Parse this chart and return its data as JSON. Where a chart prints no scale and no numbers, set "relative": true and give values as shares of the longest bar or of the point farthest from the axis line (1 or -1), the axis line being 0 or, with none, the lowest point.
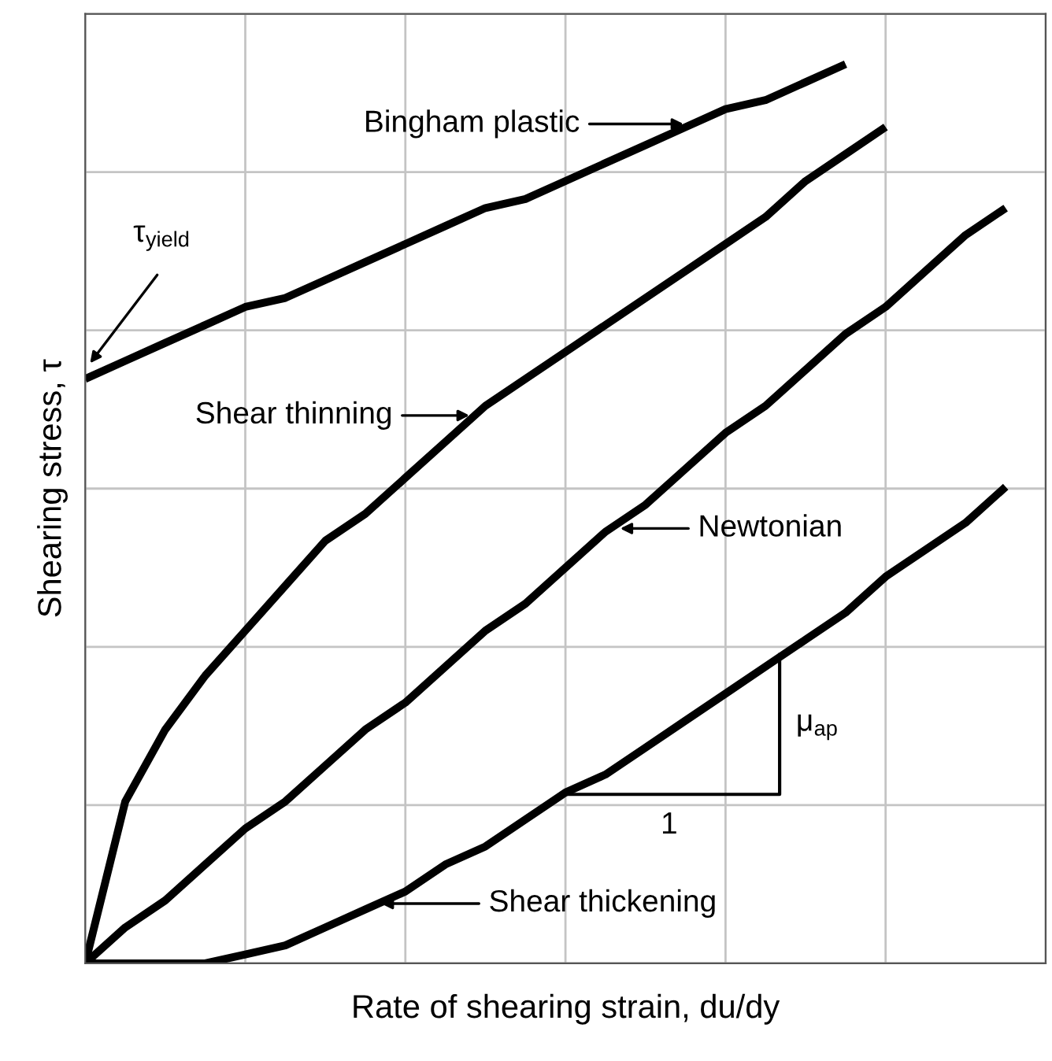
{
  "chart_data": {
    "type": "line",
    "relative": true,
    "xlabel": "Rate of shearing strain, du/dy",
    "ylabel": "Shearing stress, τ",
    "categories": [
      null,
      null,
      null,
      null,
      null,
      null,
      null,
      null,
      null,
      null,
      null,
      null,
      null,
      null,
      null,
      null,
      null,
      null,
      null,
      null,
      null,
      null,
      null,
      null,
      null
    ],
    "series": [
      {
        "color": "#000000",
        "values": [
          0.65,
          0.67,
          0.69,
          0.71,
          0.73,
          0.74,
          0.76,
          0.78,
          0.8,
          0.82,
          0.84,
          0.85,
          0.87,
          0.89,
          0.91,
          0.93,
          0.95,
          0.96,
          0.98,
          1.0,
          null,
          null,
          null,
          null,
          null
        ]
      },
      {
        "color": "#000000",
        "values": [
          0,
          0.18,
          0.26,
          0.32,
          0.37,
          0.42,
          0.47,
          0.5,
          0.54,
          0.58,
          0.62,
          0.65,
          0.68,
          0.71,
          0.74,
          0.77,
          0.8,
          0.83,
          0.87,
          0.9,
          0.93,
          null,
          null,
          null,
          null
        ]
      },
      {
        "color": "#000000",
        "values": [
          0,
          0.04,
          0.07,
          0.11,
          0.15,
          0.18,
          0.22,
          0.26,
          0.29,
          0.33,
          0.37,
          0.4,
          0.44,
          0.48,
          0.51,
          0.55,
          0.59,
          0.62,
          0.66,
          0.7,
          0.73,
          0.77,
          0.81,
          0.84,
          null
        ]
      },
      {
        "color": "#000000",
        "values": [
          0,
          0.0,
          0.0,
          0.0,
          0.01,
          0.02,
          0.04,
          0.06,
          0.08,
          0.11,
          0.13,
          0.16,
          0.19,
          0.21,
          0.24,
          0.27,
          0.3,
          0.33,
          0.36,
          0.39,
          0.43,
          0.46,
          0.49,
          0.53,
          null
        ]
      }
    ],
    "annotations": [
      "Bingham plastic",
      "τ$_{yield}$",
      "Shear thinning",
      "Newtonian",
      "Shear thickening",
      "μ$_{ap}$",
      "1"
    ],
    "grid": true,
    "tick_labels": false,
    "legend": false,
    "marker": "none",
    "line_style": "solid"
  }
}
